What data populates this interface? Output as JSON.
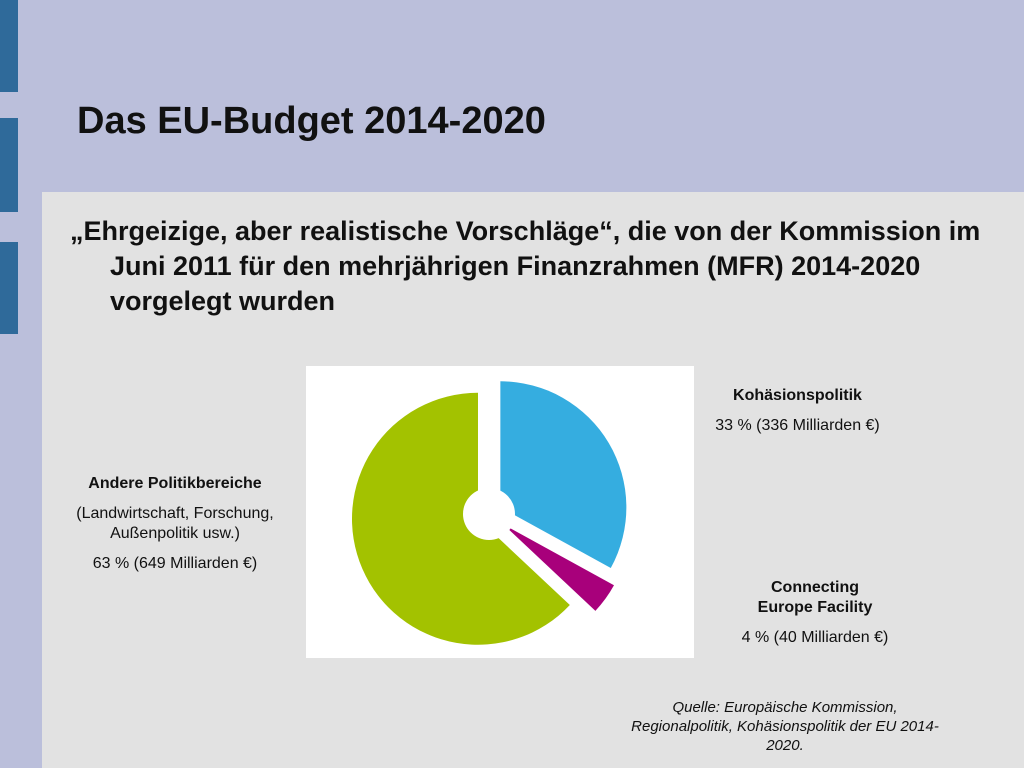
{
  "slide": {
    "title": "Das EU-Budget 2014-2020",
    "lead": "„Ehrgeizige, aber realistische Vorschläge“, die von der Kommission im Juni 2011 für den mehrjährigen Finanzrahmen (MFR) 2014-2020 vorgelegt wurden",
    "source": "Quelle: Europäische Kommission, Regionalpolitik, Kohäsionspolitik der EU 2014-2020."
  },
  "colors": {
    "background": "#bbbfdb",
    "content": "#e2e2e2",
    "accent": "#2f6a9a"
  },
  "chart_data": {
    "type": "pie",
    "title": "",
    "slices": [
      {
        "name": "Kohäsionspolitik",
        "value": 33,
        "amount": "336 Milliarden €",
        "color": "#35ade0",
        "explode": 0.22
      },
      {
        "name": "Connecting Europe Facility",
        "value": 4,
        "amount": "40 Milliarden €",
        "color": "#a8007b",
        "explode": 0.3
      },
      {
        "name": "Andere Politikbereiche",
        "value": 63,
        "amount": "649 Milliarden €",
        "color": "#a3c200",
        "explode": 0.2
      }
    ]
  },
  "labels": {
    "kohaesion": {
      "head": "Kohäsionspolitik",
      "value": "33 % (336 Milliarden €)"
    },
    "cef": {
      "head_line1": "Connecting",
      "head_line2": "Europe Facility",
      "value": "4 % (40 Milliarden €)"
    },
    "andere": {
      "head": "Andere Politikbereiche",
      "sub_line1": "(Landwirtschaft, Forschung,",
      "sub_line2": "Außenpolitik usw.)",
      "value": "63 % (649 Milliarden €)"
    }
  }
}
